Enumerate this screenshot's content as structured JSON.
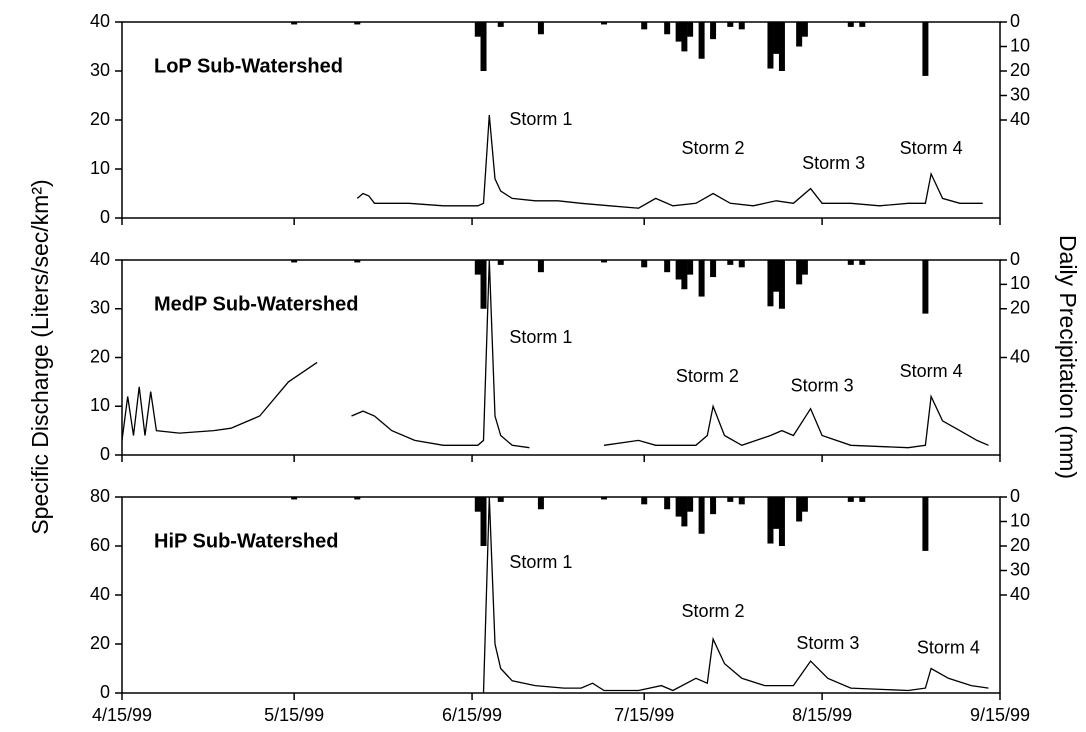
{
  "chart_data": [
    {
      "type": "line",
      "label": "LoP Sub-Watershed",
      "xlim": [
        "4/15/99",
        "9/15/99"
      ],
      "ylim": [
        0,
        40
      ],
      "yticks": [
        0,
        10,
        20,
        30,
        40
      ],
      "y2lim": [
        0,
        80
      ],
      "y2ticks": [
        0,
        10,
        20,
        30,
        40
      ],
      "y2_inverted": true,
      "series": [
        {
          "type": "line",
          "color": "#000000",
          "x": [
            "5/26/99",
            "5/27/99",
            "5/28/99",
            "5/29/99",
            "6/4/99",
            "6/10/99",
            "6/16/99",
            "6/17/99",
            "6/18/99",
            "6/19/99",
            "6/20/99",
            "6/22/99",
            "6/26/99",
            "6/30/99",
            "7/4/99",
            "7/9/99",
            "7/14/99",
            "7/17/99",
            "7/20/99",
            "7/24/99",
            "7/27/99",
            "7/30/99",
            "8/3/99",
            "8/7/99",
            "8/10/99",
            "8/13/99",
            "8/15/99",
            "8/20/99",
            "8/25/99",
            "8/30/99",
            "9/2/99",
            "9/3/99",
            "9/5/99",
            "9/8/99",
            "9/12/99"
          ],
          "values": [
            4,
            5,
            4.5,
            3,
            3,
            2.5,
            2.5,
            3,
            21,
            8,
            5.5,
            4,
            3.5,
            3.5,
            3,
            2.5,
            2,
            4,
            2.5,
            3,
            5,
            3,
            2.5,
            3.5,
            3,
            6,
            3,
            3,
            2.5,
            3,
            3,
            9,
            4,
            3,
            3
          ]
        },
        {
          "type": "bar",
          "axis": "y2",
          "color": "#000000",
          "x": [
            "5/15/99",
            "5/26/99",
            "6/16/99",
            "6/17/99",
            "6/20/99",
            "6/27/99",
            "7/8/99",
            "7/15/99",
            "7/19/99",
            "7/21/99",
            "7/22/99",
            "7/23/99",
            "7/25/99",
            "7/27/99",
            "7/30/99",
            "8/1/99",
            "8/6/99",
            "8/7/99",
            "8/8/99",
            "8/11/99",
            "8/12/99",
            "8/20/99",
            "8/22/99",
            "9/2/99"
          ],
          "values": [
            1,
            1,
            6,
            20,
            2,
            5,
            1,
            3,
            5,
            8,
            12,
            6,
            15,
            7,
            2,
            3,
            19,
            13,
            20,
            10,
            6,
            2,
            2,
            22
          ]
        }
      ],
      "annotations": [
        {
          "text": "Storm 1",
          "x": "6/27/99",
          "y": 20
        },
        {
          "text": "Storm 2",
          "x": "7/27/99",
          "y": 14
        },
        {
          "text": "Storm 3",
          "x": "8/17/99",
          "y": 11
        },
        {
          "text": "Storm 4",
          "x": "9/3/99",
          "y": 14
        }
      ]
    },
    {
      "type": "line",
      "label": "MedP Sub-Watershed",
      "y_label": "Specific Discharge (Liters/sec/km²)",
      "y2_label": "Daily Precipitation (mm)",
      "xlim": [
        "4/15/99",
        "9/15/99"
      ],
      "ylim": [
        0,
        40
      ],
      "yticks": [
        0,
        10,
        20,
        30,
        40
      ],
      "y2lim": [
        0,
        80
      ],
      "y2ticks": [
        0,
        10,
        20,
        40
      ],
      "y2_inverted": true,
      "series": [
        {
          "type": "line",
          "color": "#000000",
          "x": [
            "4/15/99",
            "4/16/99",
            "4/17/99",
            "4/18/99",
            "4/19/99",
            "4/20/99",
            "4/21/99",
            "4/25/99",
            "5/1/99",
            "5/4/99",
            "5/9/99",
            "5/14/99",
            "5/19/99",
            "5/22/99",
            "5/25/99",
            "5/27/99",
            "5/29/99",
            "6/1/99",
            "6/5/99",
            "6/10/99",
            "6/16/99",
            "6/17/99",
            "6/18/99",
            "6/19/99",
            "6/20/99",
            "6/22/99",
            "6/25/99",
            "7/1/99",
            "7/8/99",
            "7/14/99",
            "7/17/99",
            "7/24/99",
            "7/26/99",
            "7/27/99",
            "7/29/99",
            "8/1/99",
            "8/6/99",
            "8/8/99",
            "8/10/99",
            "8/13/99",
            "8/15/99",
            "8/20/99",
            "8/30/99",
            "9/2/99",
            "9/3/99",
            "9/5/99",
            "9/8/99",
            "9/11/99",
            "9/13/99"
          ],
          "values": [
            3,
            12,
            4,
            14,
            4,
            13,
            5,
            4.5,
            5,
            5.5,
            8,
            15,
            19,
            null,
            8,
            9,
            8,
            5,
            3,
            2,
            2,
            3,
            40,
            8,
            4,
            2,
            1.5,
            null,
            2,
            3,
            2,
            2,
            4,
            10,
            4,
            2,
            4,
            5,
            4,
            9.5,
            4,
            2,
            1.5,
            2,
            12,
            7,
            5,
            3,
            2
          ]
        },
        {
          "type": "bar",
          "axis": "y2",
          "color": "#000000",
          "x": [
            "5/15/99",
            "5/26/99",
            "6/16/99",
            "6/17/99",
            "6/20/99",
            "6/27/99",
            "7/8/99",
            "7/15/99",
            "7/19/99",
            "7/21/99",
            "7/22/99",
            "7/23/99",
            "7/25/99",
            "7/27/99",
            "7/30/99",
            "8/1/99",
            "8/6/99",
            "8/7/99",
            "8/8/99",
            "8/11/99",
            "8/12/99",
            "8/20/99",
            "8/22/99",
            "9/2/99"
          ],
          "values": [
            1,
            1,
            6,
            20,
            2,
            5,
            1,
            3,
            5,
            8,
            12,
            6,
            15,
            7,
            2,
            3,
            19,
            13,
            20,
            10,
            6,
            2,
            2,
            22
          ]
        }
      ],
      "annotations": [
        {
          "text": "Storm 1",
          "x": "6/27/99",
          "y": 24
        },
        {
          "text": "Storm 2",
          "x": "7/26/99",
          "y": 16
        },
        {
          "text": "Storm 3",
          "x": "8/15/99",
          "y": 14
        },
        {
          "text": "Storm 4",
          "x": "9/3/99",
          "y": 17
        }
      ]
    },
    {
      "type": "line",
      "label": "HiP Sub-Watershed",
      "xlim": [
        "4/15/99",
        "9/15/99"
      ],
      "xticks": [
        "4/15/99",
        "5/15/99",
        "6/15/99",
        "7/15/99",
        "8/15/99",
        "9/15/99"
      ],
      "ylim": [
        0,
        80
      ],
      "yticks": [
        0,
        20,
        40,
        60,
        80
      ],
      "y2lim": [
        0,
        80
      ],
      "y2ticks": [
        0,
        10,
        20,
        30,
        40
      ],
      "y2_inverted": true,
      "series": [
        {
          "type": "line",
          "color": "#000000",
          "x": [
            "6/17/99",
            "6/18/99",
            "6/19/99",
            "6/20/99",
            "6/22/99",
            "6/26/99",
            "7/1/99",
            "7/4/99",
            "7/6/99",
            "7/8/99",
            "7/14/99",
            "7/18/99",
            "7/20/99",
            "7/24/99",
            "7/26/99",
            "7/27/99",
            "7/29/99",
            "8/1/99",
            "8/5/99",
            "8/10/99",
            "8/13/99",
            "8/16/99",
            "8/20/99",
            "8/30/99",
            "9/2/99",
            "9/3/99",
            "9/6/99",
            "9/10/99",
            "9/13/99"
          ],
          "values": [
            0,
            80,
            20,
            10,
            5,
            3,
            2,
            2,
            4,
            1,
            1,
            3,
            1,
            6,
            4,
            22,
            12,
            6,
            3,
            3,
            13,
            6,
            2,
            1,
            2,
            10,
            6,
            3,
            2
          ]
        },
        {
          "type": "bar",
          "axis": "y2",
          "color": "#000000",
          "x": [
            "5/15/99",
            "5/26/99",
            "6/16/99",
            "6/17/99",
            "6/20/99",
            "6/27/99",
            "7/8/99",
            "7/15/99",
            "7/19/99",
            "7/21/99",
            "7/22/99",
            "7/23/99",
            "7/25/99",
            "7/27/99",
            "7/30/99",
            "8/1/99",
            "8/6/99",
            "8/7/99",
            "8/8/99",
            "8/11/99",
            "8/12/99",
            "8/20/99",
            "8/22/99",
            "9/2/99"
          ],
          "values": [
            1,
            1,
            6,
            20,
            2,
            5,
            1,
            3,
            5,
            8,
            12,
            6,
            15,
            7,
            2,
            3,
            19,
            13,
            20,
            10,
            6,
            2,
            2,
            22
          ]
        }
      ],
      "annotations": [
        {
          "text": "Storm 1",
          "x": "6/27/99",
          "y": 53
        },
        {
          "text": "Storm 2",
          "x": "7/27/99",
          "y": 33
        },
        {
          "text": "Storm 3",
          "x": "8/16/99",
          "y": 20
        },
        {
          "text": "Storm 4",
          "x": "9/6/99",
          "y": 18
        }
      ]
    }
  ]
}
